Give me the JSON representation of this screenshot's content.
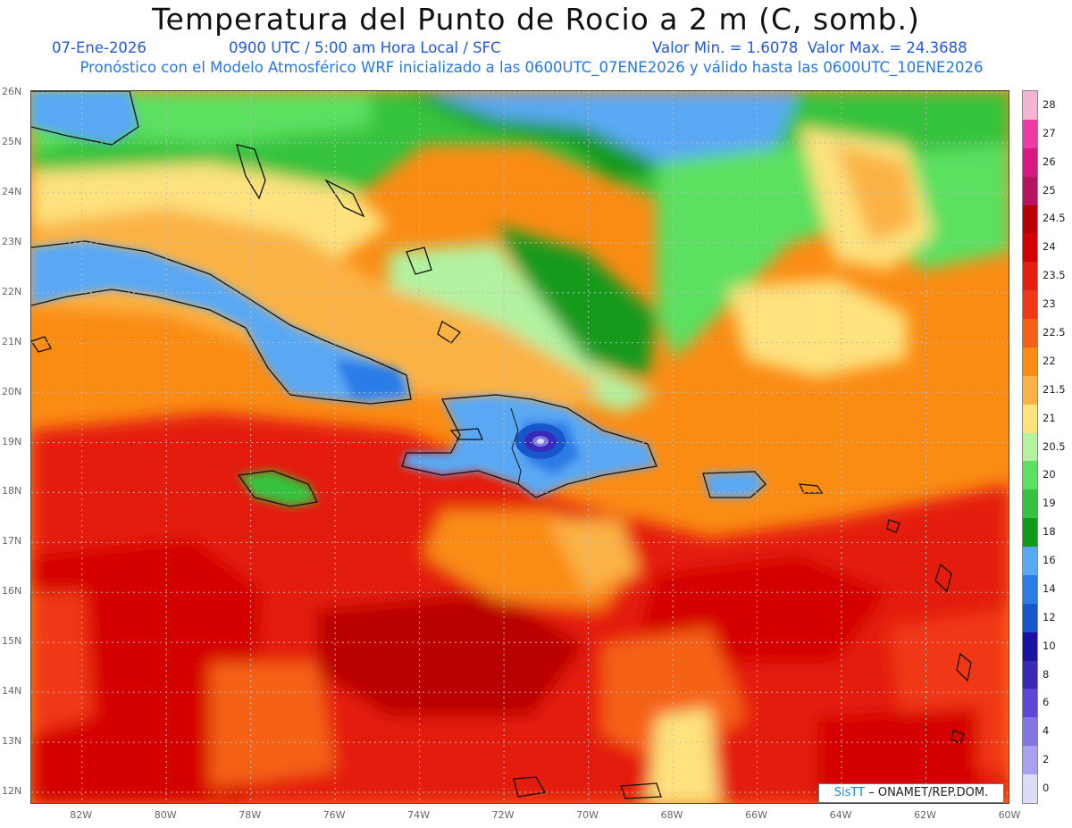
{
  "header": {
    "title": "Temperatura del Punto de Rocio a 2 m (C, somb.)",
    "date": "07-Ene-2026",
    "time": "0900 UTC / 5:00 am Hora Local / SFC",
    "minmax": "Valor Min. = 1.6078  Valor Max. = 24.3688",
    "model_line": "Pronóstico con el Modelo Atmosférico WRF inicializado a las 0600UTC_07ENE2026 y válido hasta las  0600UTC_10ENE2026"
  },
  "axes": {
    "lat_labels": [
      "26N",
      "25N",
      "24N",
      "23N",
      "22N",
      "21N",
      "20N",
      "19N",
      "18N",
      "17N",
      "16N",
      "15N",
      "14N",
      "13N",
      "12N"
    ],
    "lon_labels": [
      "82W",
      "80W",
      "78W",
      "76W",
      "74W",
      "72W",
      "70W",
      "68W",
      "66W",
      "64W",
      "62W",
      "60W"
    ],
    "lat_range": [
      12,
      26
    ],
    "lon_range": [
      -83.2,
      -60
    ]
  },
  "legend": {
    "labels": [
      "28",
      "27",
      "26",
      "25",
      "24.5",
      "24",
      "23.5",
      "23",
      "22.5",
      "22",
      "21.5",
      "21",
      "20.5",
      "20",
      "19",
      "18",
      "16",
      "14",
      "12",
      "10",
      "8",
      "6",
      "4",
      "2",
      "0"
    ],
    "colors": [
      "#f4b4d4",
      "#ee3aa6",
      "#d81a80",
      "#b81460",
      "#ba0000",
      "#d40000",
      "#e41f0f",
      "#f03816",
      "#f56216",
      "#fa8c14",
      "#fbb244",
      "#fde27e",
      "#b2f2a0",
      "#5ce060",
      "#36c23e",
      "#149a1a",
      "#5aa8f4",
      "#2c7ce6",
      "#1856cc",
      "#1c12a0",
      "#3a2ab8",
      "#5c48d4",
      "#8076e4",
      "#a8a0f0",
      "#dcdcf8"
    ]
  },
  "credit": {
    "brand": "SisTT",
    "text": "– ONAMET/REP.DOM."
  },
  "colors": {
    "title": "#111111",
    "subtitle": "#2255ee",
    "graticule": "#bbbbbb"
  }
}
